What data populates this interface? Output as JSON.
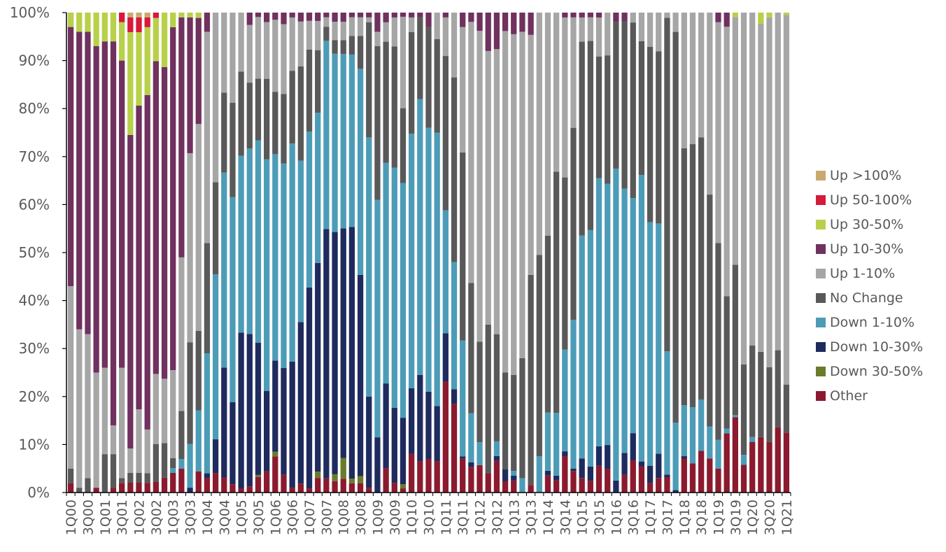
{
  "chart_data": {
    "type": "bar",
    "stacked": "percent",
    "title": "",
    "xlabel": "",
    "ylabel": "",
    "ylim": [
      0,
      100
    ],
    "y_ticks": [
      "0%",
      "10%",
      "20%",
      "30%",
      "40%",
      "50%",
      "60%",
      "70%",
      "80%",
      "90%",
      "100%"
    ],
    "legend_position": "right",
    "categories": [
      "1Q00",
      "2Q00",
      "3Q00",
      "4Q00",
      "1Q01",
      "2Q01",
      "3Q01",
      "4Q01",
      "1Q02",
      "2Q02",
      "3Q02",
      "4Q02",
      "1Q03",
      "2Q03",
      "3Q03",
      "4Q03",
      "1Q04",
      "2Q04",
      "3Q04",
      "4Q04",
      "1Q05",
      "2Q05",
      "3Q05",
      "4Q05",
      "1Q06",
      "2Q06",
      "3Q06",
      "4Q06",
      "1Q07",
      "2Q07",
      "3Q07",
      "4Q07",
      "1Q08",
      "2Q08",
      "3Q08",
      "4Q08",
      "1Q09",
      "2Q09",
      "3Q09",
      "4Q09",
      "1Q10",
      "2Q10",
      "3Q10",
      "4Q10",
      "1Q11",
      "2Q11",
      "3Q11",
      "4Q11",
      "1Q12",
      "2Q12",
      "3Q12",
      "4Q12",
      "1Q13",
      "2Q13",
      "3Q13",
      "4Q13",
      "1Q14",
      "2Q14",
      "3Q14",
      "4Q14",
      "1Q15",
      "2Q15",
      "3Q15",
      "4Q15",
      "1Q16",
      "2Q16",
      "3Q16",
      "4Q16",
      "1Q17",
      "2Q17",
      "3Q17",
      "4Q17",
      "1Q18",
      "2Q18",
      "3Q18",
      "4Q18",
      "1Q19",
      "2Q19",
      "3Q19",
      "4Q19",
      "1Q20",
      "2Q20",
      "3Q20",
      "4Q20",
      "1Q21"
    ],
    "x_tick_labels": [
      "1Q00",
      "3Q00",
      "1Q01",
      "3Q01",
      "1Q02",
      "3Q02",
      "1Q03",
      "3Q03",
      "1Q04",
      "3Q04",
      "1Q05",
      "3Q05",
      "1Q06",
      "3Q06",
      "1Q07",
      "3Q07",
      "1Q08",
      "3Q08",
      "1Q09",
      "3Q09",
      "1Q10",
      "3Q10",
      "1Q11",
      "3Q11",
      "1Q12",
      "3Q12",
      "1Q13",
      "3Q13",
      "1Q14",
      "3Q14",
      "1Q15",
      "3Q15",
      "1Q16",
      "3Q16",
      "1Q17",
      "3Q17",
      "1Q18",
      "3Q18",
      "1Q19",
      "3Q19",
      "1Q20",
      "3Q20",
      "1Q21"
    ],
    "series": [
      {
        "name": "Other",
        "color": "#8b1a2e",
        "values": [
          2,
          0,
          0,
          1,
          0,
          1,
          2,
          2,
          2,
          2,
          2,
          3,
          4,
          5,
          0,
          4,
          3,
          4,
          3,
          2,
          1,
          1.5,
          3.5,
          4.5,
          7.5,
          3.8,
          1,
          2,
          1,
          3.5,
          3,
          2.5,
          3,
          2,
          2,
          1,
          0,
          5,
          2,
          1,
          8,
          6.5,
          7,
          6.5,
          23,
          18.5,
          7,
          5.5,
          6,
          4,
          6.5,
          2.5,
          2.5,
          0,
          1.5,
          0,
          3.5,
          2.5,
          7.5,
          4.5,
          3,
          2.5,
          5.5,
          5,
          0,
          4,
          6.5,
          5.5,
          2,
          3,
          3,
          0,
          7,
          6,
          8.5,
          7.5,
          5,
          12.5,
          17,
          5.5,
          10.5,
          12,
          10.5,
          13.5,
          12.5
        ]
      },
      {
        "name": "Down 30-50%",
        "color": "#6b7b2c",
        "values": [
          0,
          0,
          0,
          0,
          0,
          0,
          0,
          0,
          0,
          0,
          0,
          0,
          0,
          0,
          0,
          0,
          0,
          0,
          0,
          0,
          0,
          0,
          0.5,
          0,
          1,
          0,
          0,
          0,
          0,
          1.5,
          0,
          1.5,
          4.5,
          1,
          1.5,
          0,
          0,
          0,
          0,
          1,
          0,
          0,
          0,
          0,
          0,
          0,
          0,
          0,
          0,
          0,
          0,
          0,
          0,
          0,
          0,
          0,
          0,
          0,
          0,
          0,
          0,
          0,
          0,
          0,
          0,
          0,
          0,
          0,
          0,
          0,
          0,
          0,
          0,
          0,
          0,
          0,
          0,
          0,
          0,
          0,
          0,
          0,
          0,
          0,
          0
        ]
      },
      {
        "name": "Down 10-30%",
        "color": "#1f2b5e",
        "values": [
          0,
          0,
          0,
          0,
          0,
          0,
          0,
          0,
          0,
          0,
          0,
          0,
          0,
          0,
          1,
          0,
          1,
          7,
          22,
          20,
          37,
          37,
          30,
          17,
          19,
          23,
          26,
          36,
          49,
          50,
          53,
          53,
          50,
          54,
          43,
          19,
          11.5,
          17.5,
          15.5,
          16,
          13.5,
          18,
          14,
          11.5,
          10,
          3,
          0.5,
          1,
          0,
          0,
          1,
          2.5,
          1,
          0,
          0,
          0,
          1,
          1,
          1,
          0.5,
          4,
          3,
          4,
          5,
          2.5,
          5,
          5.5,
          1,
          3.5,
          5,
          0.5,
          0.5,
          0.5,
          0,
          0,
          0,
          0,
          0,
          0,
          0,
          0,
          0,
          0,
          0,
          0
        ]
      },
      {
        "name": "Down 1-10%",
        "color": "#4d9cb7",
        "values": [
          0,
          0,
          0,
          0,
          0,
          0,
          0,
          0,
          0,
          0,
          0,
          0,
          1,
          2,
          9,
          11.5,
          25,
          34,
          39,
          50,
          42,
          45,
          46,
          49,
          43,
          44,
          45,
          36,
          38,
          36,
          40,
          39,
          38,
          37,
          44,
          54,
          49.5,
          45.5,
          49.5,
          56.5,
          52.5,
          57.5,
          55,
          57,
          25.5,
          26.5,
          24,
          10.5,
          5,
          0,
          3,
          0,
          1,
          3,
          0,
          7.5,
          12,
          13,
          21,
          31,
          46,
          50,
          55,
          55,
          65,
          60,
          47.5,
          60,
          50,
          47.5,
          24,
          14,
          10.5,
          11.5,
          10.5,
          7,
          6,
          1,
          0.5,
          2,
          1,
          0,
          0,
          0,
          0
        ]
      },
      {
        "name": "No Change",
        "color": "#595959",
        "values": [
          3,
          1,
          3,
          0,
          8,
          7,
          1,
          2,
          2,
          2,
          7,
          7,
          2,
          10,
          21,
          15,
          23,
          19,
          16,
          23,
          20,
          16,
          14,
          17,
          13,
          15,
          15,
          21,
          20,
          15,
          3,
          3,
          3,
          4,
          7,
          24,
          32,
          25,
          25,
          18,
          21,
          17,
          21,
          19.5,
          32,
          38.5,
          39,
          28,
          22,
          31,
          22,
          21,
          20,
          25,
          42.5,
          41.5,
          36.5,
          50,
          35.5,
          40,
          40,
          40,
          25,
          27,
          30.5,
          38,
          35.5,
          28,
          36,
          35.5,
          65,
          81,
          53,
          54,
          53.5,
          51,
          41,
          28,
          34,
          18,
          19,
          18.5,
          15.5,
          16,
          10
        ]
      },
      {
        "name": "Up 1-10%",
        "color": "#a6a6a6",
        "values": [
          38,
          33,
          30,
          24,
          18,
          6,
          23,
          5,
          13,
          9,
          13,
          13,
          18,
          32,
          39,
          39,
          44,
          35,
          16,
          22,
          14,
          14,
          14,
          12,
          15,
          15,
          11,
          10,
          7,
          7,
          2,
          4,
          4,
          4,
          4,
          1,
          3,
          4,
          6,
          22,
          3,
          0,
          0,
          5.5,
          8,
          13.5,
          26,
          56,
          68,
          57,
          58.5,
          74,
          71,
          68,
          48.5,
          50,
          46,
          33,
          33,
          23,
          5,
          5,
          8,
          9,
          0,
          0,
          2,
          6,
          7,
          8,
          1,
          4,
          28,
          27,
          25.5,
          40,
          46,
          57,
          56,
          70,
          69,
          71,
          72.5,
          70,
          77
        ]
      },
      {
        "name": "Up 10-30%",
        "color": "#70315f",
        "values": [
          54,
          62,
          63,
          68,
          68,
          80,
          64,
          64,
          62,
          69,
          58,
          63,
          70,
          50,
          28,
          20,
          4,
          0,
          0,
          0,
          0,
          3,
          1,
          2,
          1.5,
          2.5,
          1,
          2,
          2,
          2,
          1,
          2,
          2,
          1,
          1,
          1,
          4,
          2,
          1,
          1,
          1,
          1,
          3,
          0,
          1,
          0,
          3,
          2,
          4,
          8,
          7.5,
          4,
          4.5,
          4,
          4.5,
          0,
          0,
          0,
          1,
          1,
          1,
          1,
          1,
          0,
          2,
          2,
          0,
          0,
          0,
          0,
          0,
          0,
          0,
          0,
          0,
          0,
          2,
          3,
          0,
          0,
          0,
          0,
          0,
          0,
          0
        ]
      },
      {
        "name": "Up 30-50%",
        "color": "#b8d04a",
        "values": [
          3,
          4,
          4,
          7,
          6,
          6,
          8,
          21,
          15,
          14,
          8,
          11,
          3,
          1,
          1,
          1,
          0,
          0,
          0,
          0,
          0,
          0,
          0,
          0,
          0,
          0,
          0,
          0,
          0,
          0,
          0,
          0,
          0,
          0,
          0,
          0,
          0,
          0,
          0,
          0,
          0,
          0,
          0,
          0,
          0,
          0,
          0,
          0,
          0,
          0,
          0,
          0,
          0,
          0,
          0,
          0,
          0,
          0,
          0,
          0,
          0,
          0,
          0,
          0,
          0,
          0,
          0,
          0,
          0,
          0,
          0,
          0,
          0,
          0,
          0,
          0,
          0,
          0,
          1,
          0,
          0,
          2.5,
          1,
          0,
          0.5
        ]
      },
      {
        "name": "Up 50-100%",
        "color": "#d7193a",
        "values": [
          0,
          0,
          0,
          0,
          0,
          0,
          2,
          3,
          3,
          2,
          1,
          0,
          0,
          0,
          0,
          0,
          0,
          0,
          0,
          0,
          0,
          0,
          0,
          0,
          0,
          0,
          0,
          0,
          0,
          0,
          0,
          0,
          0,
          0,
          0,
          0,
          0,
          0,
          0,
          0,
          0,
          0,
          0,
          0,
          0,
          0,
          0,
          0,
          0,
          0,
          0,
          0,
          0,
          0,
          0,
          0,
          0,
          0,
          0,
          0,
          0,
          0,
          0,
          0,
          0,
          0,
          0,
          0,
          0,
          0,
          0,
          0,
          0,
          0,
          0,
          0,
          0,
          0,
          0,
          0,
          0,
          0,
          0,
          0,
          0
        ]
      },
      {
        "name": "Up >100%",
        "color": "#c9a96e",
        "values": [
          0,
          0,
          0,
          0,
          0,
          0,
          0,
          1,
          1,
          1,
          0,
          0,
          0,
          0,
          0,
          0,
          0,
          0,
          0,
          0,
          0,
          0,
          0,
          0,
          0,
          0,
          0,
          0,
          0,
          0,
          0,
          0,
          0,
          0,
          0,
          0,
          0,
          0,
          0,
          0,
          0,
          0,
          0,
          0,
          0,
          0,
          0,
          0,
          0,
          0,
          0,
          0,
          0,
          0,
          0,
          0,
          0,
          0,
          0,
          0,
          0,
          0,
          0,
          0,
          0,
          0,
          0,
          0,
          0,
          0,
          0,
          0,
          0,
          0,
          0,
          0,
          0,
          0,
          0,
          0,
          0,
          0,
          0,
          0,
          0
        ]
      }
    ]
  },
  "legend": [
    {
      "label": "Up >100%",
      "color": "#c9a96e"
    },
    {
      "label": "Up 50-100%",
      "color": "#d7193a"
    },
    {
      "label": "Up 30-50%",
      "color": "#b8d04a"
    },
    {
      "label": "Up 10-30%",
      "color": "#70315f"
    },
    {
      "label": "Up 1-10%",
      "color": "#a6a6a6"
    },
    {
      "label": "No Change",
      "color": "#595959"
    },
    {
      "label": "Down 1-10%",
      "color": "#4d9cb7"
    },
    {
      "label": "Down 10-30%",
      "color": "#1f2b5e"
    },
    {
      "label": "Down 30-50%",
      "color": "#6b7b2c"
    },
    {
      "label": "Other",
      "color": "#8b1a2e"
    }
  ]
}
